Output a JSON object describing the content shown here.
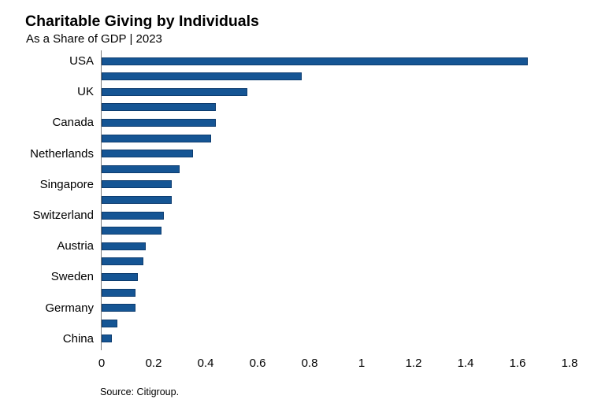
{
  "chart_data": {
    "type": "bar",
    "orientation": "horizontal",
    "title": "Charitable Giving by Individuals",
    "subtitle": "As a Share of GDP | 2023",
    "source": "Source: Citigroup.",
    "categories": [
      "USA",
      "",
      "UK",
      "",
      "Canada",
      "",
      "Netherlands",
      "",
      "Singapore",
      "",
      "Switzerland",
      "",
      "Austria",
      "",
      "Sweden",
      "",
      "Germany",
      "",
      "China"
    ],
    "values": [
      1.64,
      0.77,
      0.56,
      0.44,
      0.44,
      0.42,
      0.35,
      0.3,
      0.27,
      0.27,
      0.24,
      0.23,
      0.17,
      0.16,
      0.14,
      0.13,
      0.13,
      0.06,
      0.04
    ],
    "xlim": [
      0,
      1.8
    ],
    "x_tick_values": [
      0,
      0.2,
      0.4,
      0.6,
      0.8,
      1,
      1.2,
      1.4,
      1.6,
      1.8
    ],
    "x_tick_labels": [
      "0",
      "0.2",
      "0.4",
      "0.6",
      "0.8",
      "1",
      "1.2",
      "1.4",
      "1.6",
      "1.8"
    ],
    "grid": false,
    "legend": "none",
    "bar_color": "#155594",
    "bar_border_color": "#0d3c6f",
    "axis_line_color": "#7f7f7f",
    "text_color": "#000000"
  }
}
